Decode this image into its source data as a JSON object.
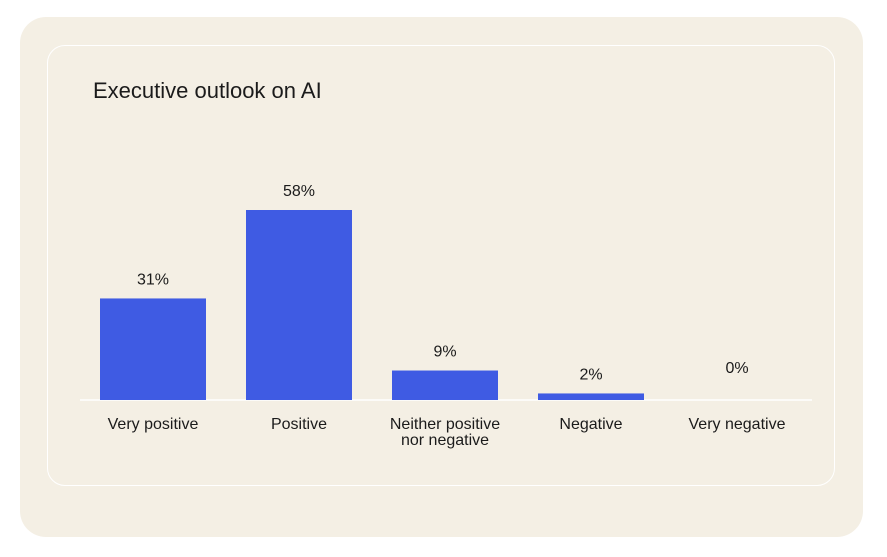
{
  "colors": {
    "bar": "#3f5be3",
    "outer_background": "#f4efe4",
    "inner_border": "#ffffff",
    "text": "#1b1b1b",
    "baseline": "#ffffff"
  },
  "chart_data": {
    "type": "bar",
    "title": "Executive outlook on AI",
    "xlabel": "",
    "ylabel": "",
    "categories": [
      "Very positive",
      "Positive",
      "Neither positive nor negative",
      "Negative",
      "Very negative"
    ],
    "category_lines": [
      [
        "Very positive"
      ],
      [
        "Positive"
      ],
      [
        "Neither positive",
        "nor negative"
      ],
      [
        "Negative"
      ],
      [
        "Very negative"
      ]
    ],
    "values": [
      31,
      58,
      9,
      2,
      0
    ],
    "value_labels": [
      "31%",
      "58%",
      "9%",
      "2%",
      "0%"
    ],
    "ylim": [
      0,
      58
    ],
    "grid": false,
    "legend": "none"
  }
}
